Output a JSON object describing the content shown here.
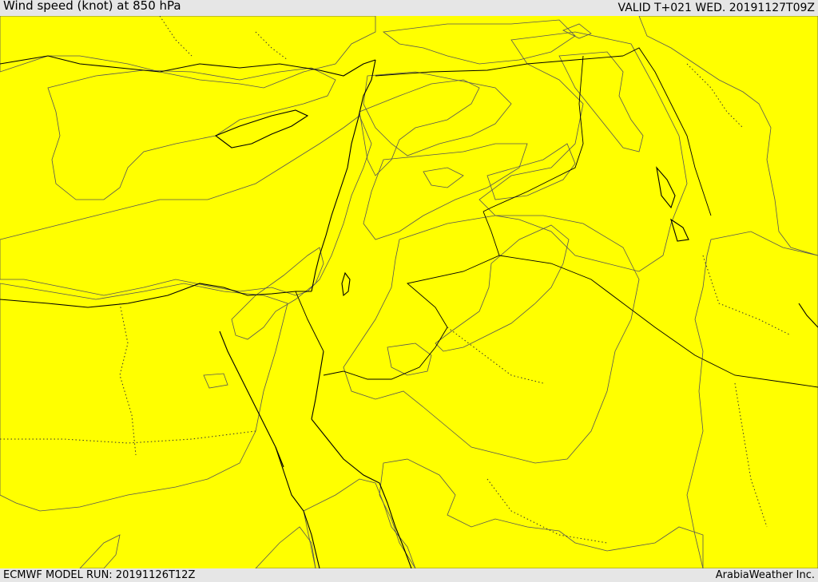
{
  "header": {
    "title": "Wind speed (knot) at 850 hPa",
    "valid": "VALID T+021 WED. 20191127T09Z"
  },
  "footer": {
    "model_run": "ECMWF MODEL RUN: 20191126T12Z",
    "brand": "ArabiaWeather Inc."
  },
  "map": {
    "colors": {
      "band_0_10": "#ffdfa8",
      "band_10_15": "#ffff00",
      "band_15_20": "#ffdd00",
      "band_20_25": "#ffbb00",
      "band_25_30": "#f0a000",
      "water_no_data": "#ffffff"
    }
  }
}
